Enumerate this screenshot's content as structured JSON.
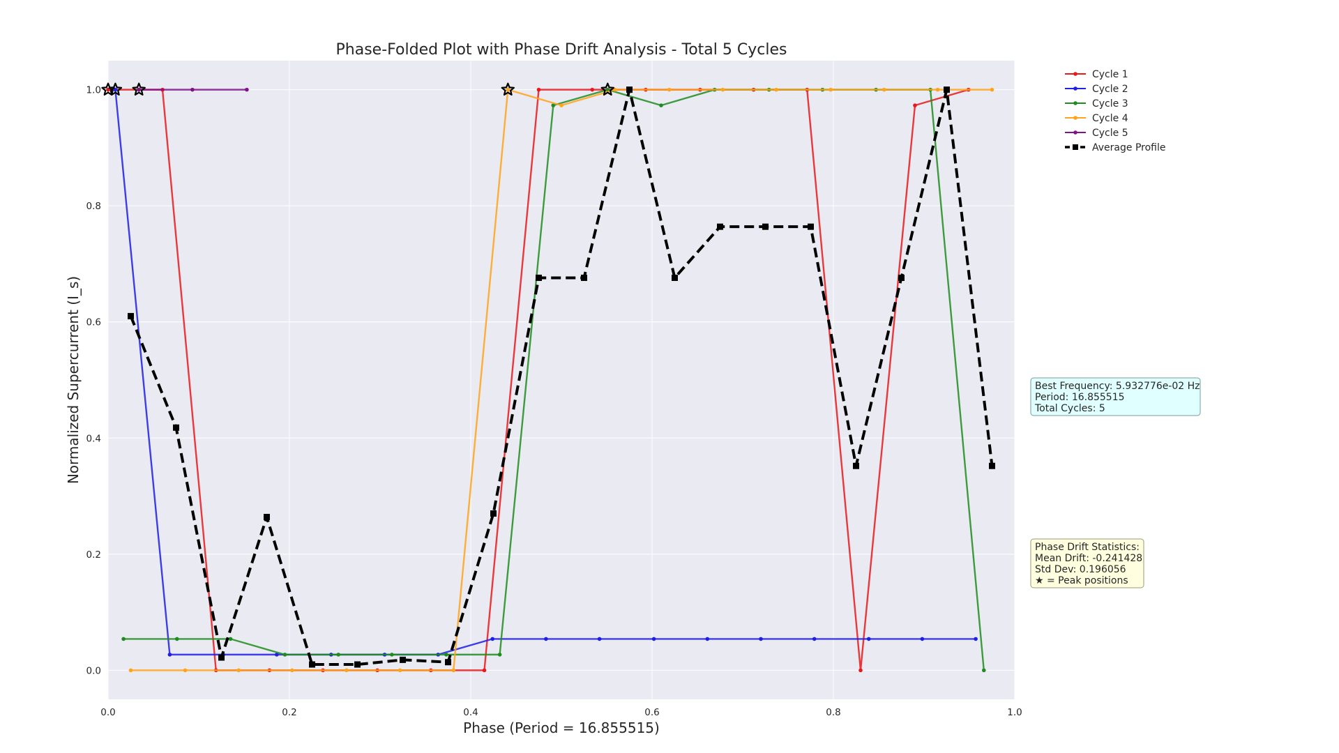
{
  "chart_data": {
    "type": "line",
    "title": "Phase-Folded Plot with Phase Drift Analysis - Total 5 Cycles",
    "xlabel": "Phase (Period = 16.855515)",
    "ylabel": "Normalized Supercurrent (I_s)",
    "xlim": [
      0.0,
      1.0
    ],
    "ylim": [
      -0.05,
      1.05
    ],
    "xticks": [
      "0.0",
      "0.2",
      "0.4",
      "0.6",
      "0.8",
      "1.0"
    ],
    "yticks": [
      "0.0",
      "0.2",
      "0.4",
      "0.6",
      "0.8",
      "1.0"
    ],
    "grid": true,
    "legend_position": "top-right, outside plot",
    "series": [
      {
        "name": "Cycle 1",
        "color": "#e8191c",
        "x": [
          0.0,
          0.06,
          0.119,
          0.178,
          0.237,
          0.297,
          0.356,
          0.415,
          0.475,
          0.534,
          0.593,
          0.653,
          0.712,
          0.771,
          0.83,
          0.89,
          0.949
        ],
        "y": [
          1.0,
          1.0,
          0.0,
          0.0,
          0.0,
          0.0,
          0.0,
          0.0,
          1.0,
          1.0,
          1.0,
          1.0,
          1.0,
          1.0,
          0.0,
          0.973,
          1.0
        ]
      },
      {
        "name": "Cycle 2",
        "color": "#1f1fe6",
        "x": [
          0.008,
          0.068,
          0.127,
          0.186,
          0.246,
          0.305,
          0.364,
          0.424,
          0.483,
          0.542,
          0.602,
          0.661,
          0.72,
          0.779,
          0.839,
          0.898,
          0.957
        ],
        "y": [
          1.0,
          0.027,
          0.027,
          0.027,
          0.027,
          0.027,
          0.027,
          0.054,
          0.054,
          0.054,
          0.054,
          0.054,
          0.054,
          0.054,
          0.054,
          0.054,
          0.054
        ]
      },
      {
        "name": "Cycle 3",
        "color": "#1f8c1f",
        "x": [
          0.017,
          0.076,
          0.135,
          0.195,
          0.254,
          0.313,
          0.373,
          0.432,
          0.491,
          0.551,
          0.61,
          0.669,
          0.729,
          0.788,
          0.847,
          0.907,
          0.966
        ],
        "y": [
          0.054,
          0.054,
          0.054,
          0.027,
          0.027,
          0.027,
          0.027,
          0.027,
          0.973,
          1.0,
          0.973,
          1.0,
          1.0,
          1.0,
          1.0,
          1.0,
          0.0
        ]
      },
      {
        "name": "Cycle 4",
        "color": "#ffa31a",
        "x": [
          0.025,
          0.085,
          0.144,
          0.203,
          0.263,
          0.322,
          0.381,
          0.441,
          0.5,
          0.559,
          0.619,
          0.678,
          0.737,
          0.797,
          0.856,
          0.915,
          0.975
        ],
        "y": [
          0.0,
          0.0,
          0.0,
          0.0,
          0.0,
          0.0,
          0.0,
          1.0,
          0.973,
          1.0,
          1.0,
          1.0,
          1.0,
          1.0,
          1.0,
          1.0,
          1.0
        ]
      },
      {
        "name": "Cycle 5",
        "color": "#80138c",
        "x": [
          0.034,
          0.093,
          0.153
        ],
        "y": [
          1.0,
          1.0,
          1.0
        ]
      },
      {
        "name": "Average Profile",
        "color": "#000000",
        "dashed": true,
        "x": [
          0.025,
          0.075,
          0.125,
          0.175,
          0.225,
          0.275,
          0.325,
          0.375,
          0.425,
          0.475,
          0.525,
          0.575,
          0.625,
          0.675,
          0.725,
          0.775,
          0.825,
          0.875,
          0.925,
          0.975
        ],
        "y": [
          0.61,
          0.418,
          0.022,
          0.264,
          0.01,
          0.01,
          0.018,
          0.014,
          0.27,
          0.676,
          0.676,
          1.0,
          0.676,
          0.764,
          0.764,
          0.764,
          0.352,
          0.676,
          1.0,
          0.352
        ]
      }
    ],
    "peak_markers": {
      "x": [
        0.008,
        0.034,
        0.441,
        0.551,
        0.0
      ],
      "y": [
        1.0,
        1.0,
        1.0,
        1.0,
        1.0
      ]
    },
    "annotations": {
      "frequency_box": {
        "lines": [
          "Best Frequency: 5.932776e-02 Hz",
          "Period: 16.855515",
          "Total Cycles: 5"
        ],
        "background": "#e0ffff"
      },
      "drift_box": {
        "lines": [
          "Phase Drift Statistics:",
          "Mean Drift: -0.241428",
          "Std Dev: 0.196056",
          "★ = Peak positions"
        ],
        "background": "#ffffe0"
      }
    }
  }
}
